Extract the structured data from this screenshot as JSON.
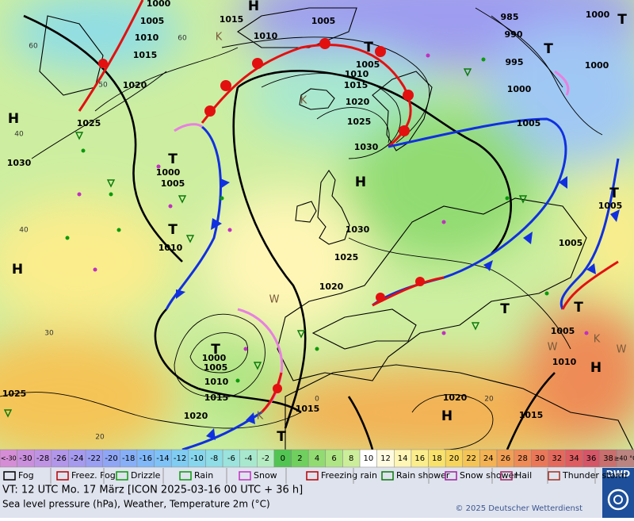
{
  "map": {
    "isobar_labels": [
      "1000",
      "1005",
      "1010",
      "1015",
      "1020",
      "1025",
      "1030",
      "1015",
      "1010",
      "1005",
      "985",
      "990",
      "995",
      "1000",
      "1000",
      "1000",
      "1005",
      "1005",
      "1010",
      "1015",
      "1020",
      "1025",
      "1030",
      "1000",
      "1005",
      "1010",
      "1030",
      "1025",
      "1020",
      "1005",
      "1005",
      "1005",
      "1010",
      "1000",
      "1005",
      "1010",
      "1015",
      "1015",
      "1020",
      "1015",
      "1020",
      "1025"
    ],
    "temperature_labels": [
      "60",
      "60",
      "50",
      "40",
      "40",
      "30",
      "20",
      "20",
      "0"
    ],
    "centers": [
      "H",
      "H",
      "H",
      "H",
      "H",
      "H",
      "T",
      "T",
      "T",
      "T",
      "T",
      "T",
      "T",
      "T",
      "T",
      "T",
      "K",
      "K",
      "K",
      "K",
      "W",
      "W",
      "W"
    ]
  },
  "temperature_scale": {
    "labels": [
      "<-30",
      -30,
      -28,
      -26,
      -24,
      -22,
      -20,
      -18,
      -16,
      -14,
      -12,
      -10,
      -8,
      -6,
      -4,
      -2,
      0,
      2,
      4,
      6,
      8,
      10,
      12,
      14,
      16,
      18,
      20,
      22,
      24,
      26,
      28,
      30,
      32,
      34,
      36,
      38,
      "≥40 °C"
    ],
    "colors": [
      "#d58ed6",
      "#c98fdc",
      "#bf93e4",
      "#b296e9",
      "#a69aef",
      "#9a9ff2",
      "#8fa6f5",
      "#86aff7",
      "#80b8f8",
      "#7ec2f7",
      "#80ccf3",
      "#86d6ee",
      "#8fdde6",
      "#9be3dc",
      "#a8e8cf",
      "#b6ecc2",
      "#52c452",
      "#70cf5e",
      "#92db72",
      "#b0e585",
      "#ccee9a",
      "#ffffff",
      "#fffbe0",
      "#fff6b6",
      "#fbed8c",
      "#f9e26c",
      "#f7d45c",
      "#f5c457",
      "#f3b254",
      "#f19f55",
      "#ee8b56",
      "#ea7858",
      "#e4695c",
      "#dd5d61",
      "#d45667",
      "#c96f6d",
      "#bb8480"
    ]
  },
  "weather_legend": [
    "Fog",
    "Freez. Fog",
    "Drizzle",
    "Rain",
    "Snow",
    "Freezing rain",
    "Rain shower",
    "Snow shower",
    "Hail",
    "Thunder storm"
  ],
  "footer": {
    "valid_time": "VT: 12 UTC Mo.  17 März [ICON 2025-03-16  00 UTC + 36 h]",
    "parameters": "Sea level pressure (hPa), Weather, Temperature 2m (°C)",
    "copyright": "© 2025 Deutscher Wetterdienst",
    "logo": "DWD"
  }
}
